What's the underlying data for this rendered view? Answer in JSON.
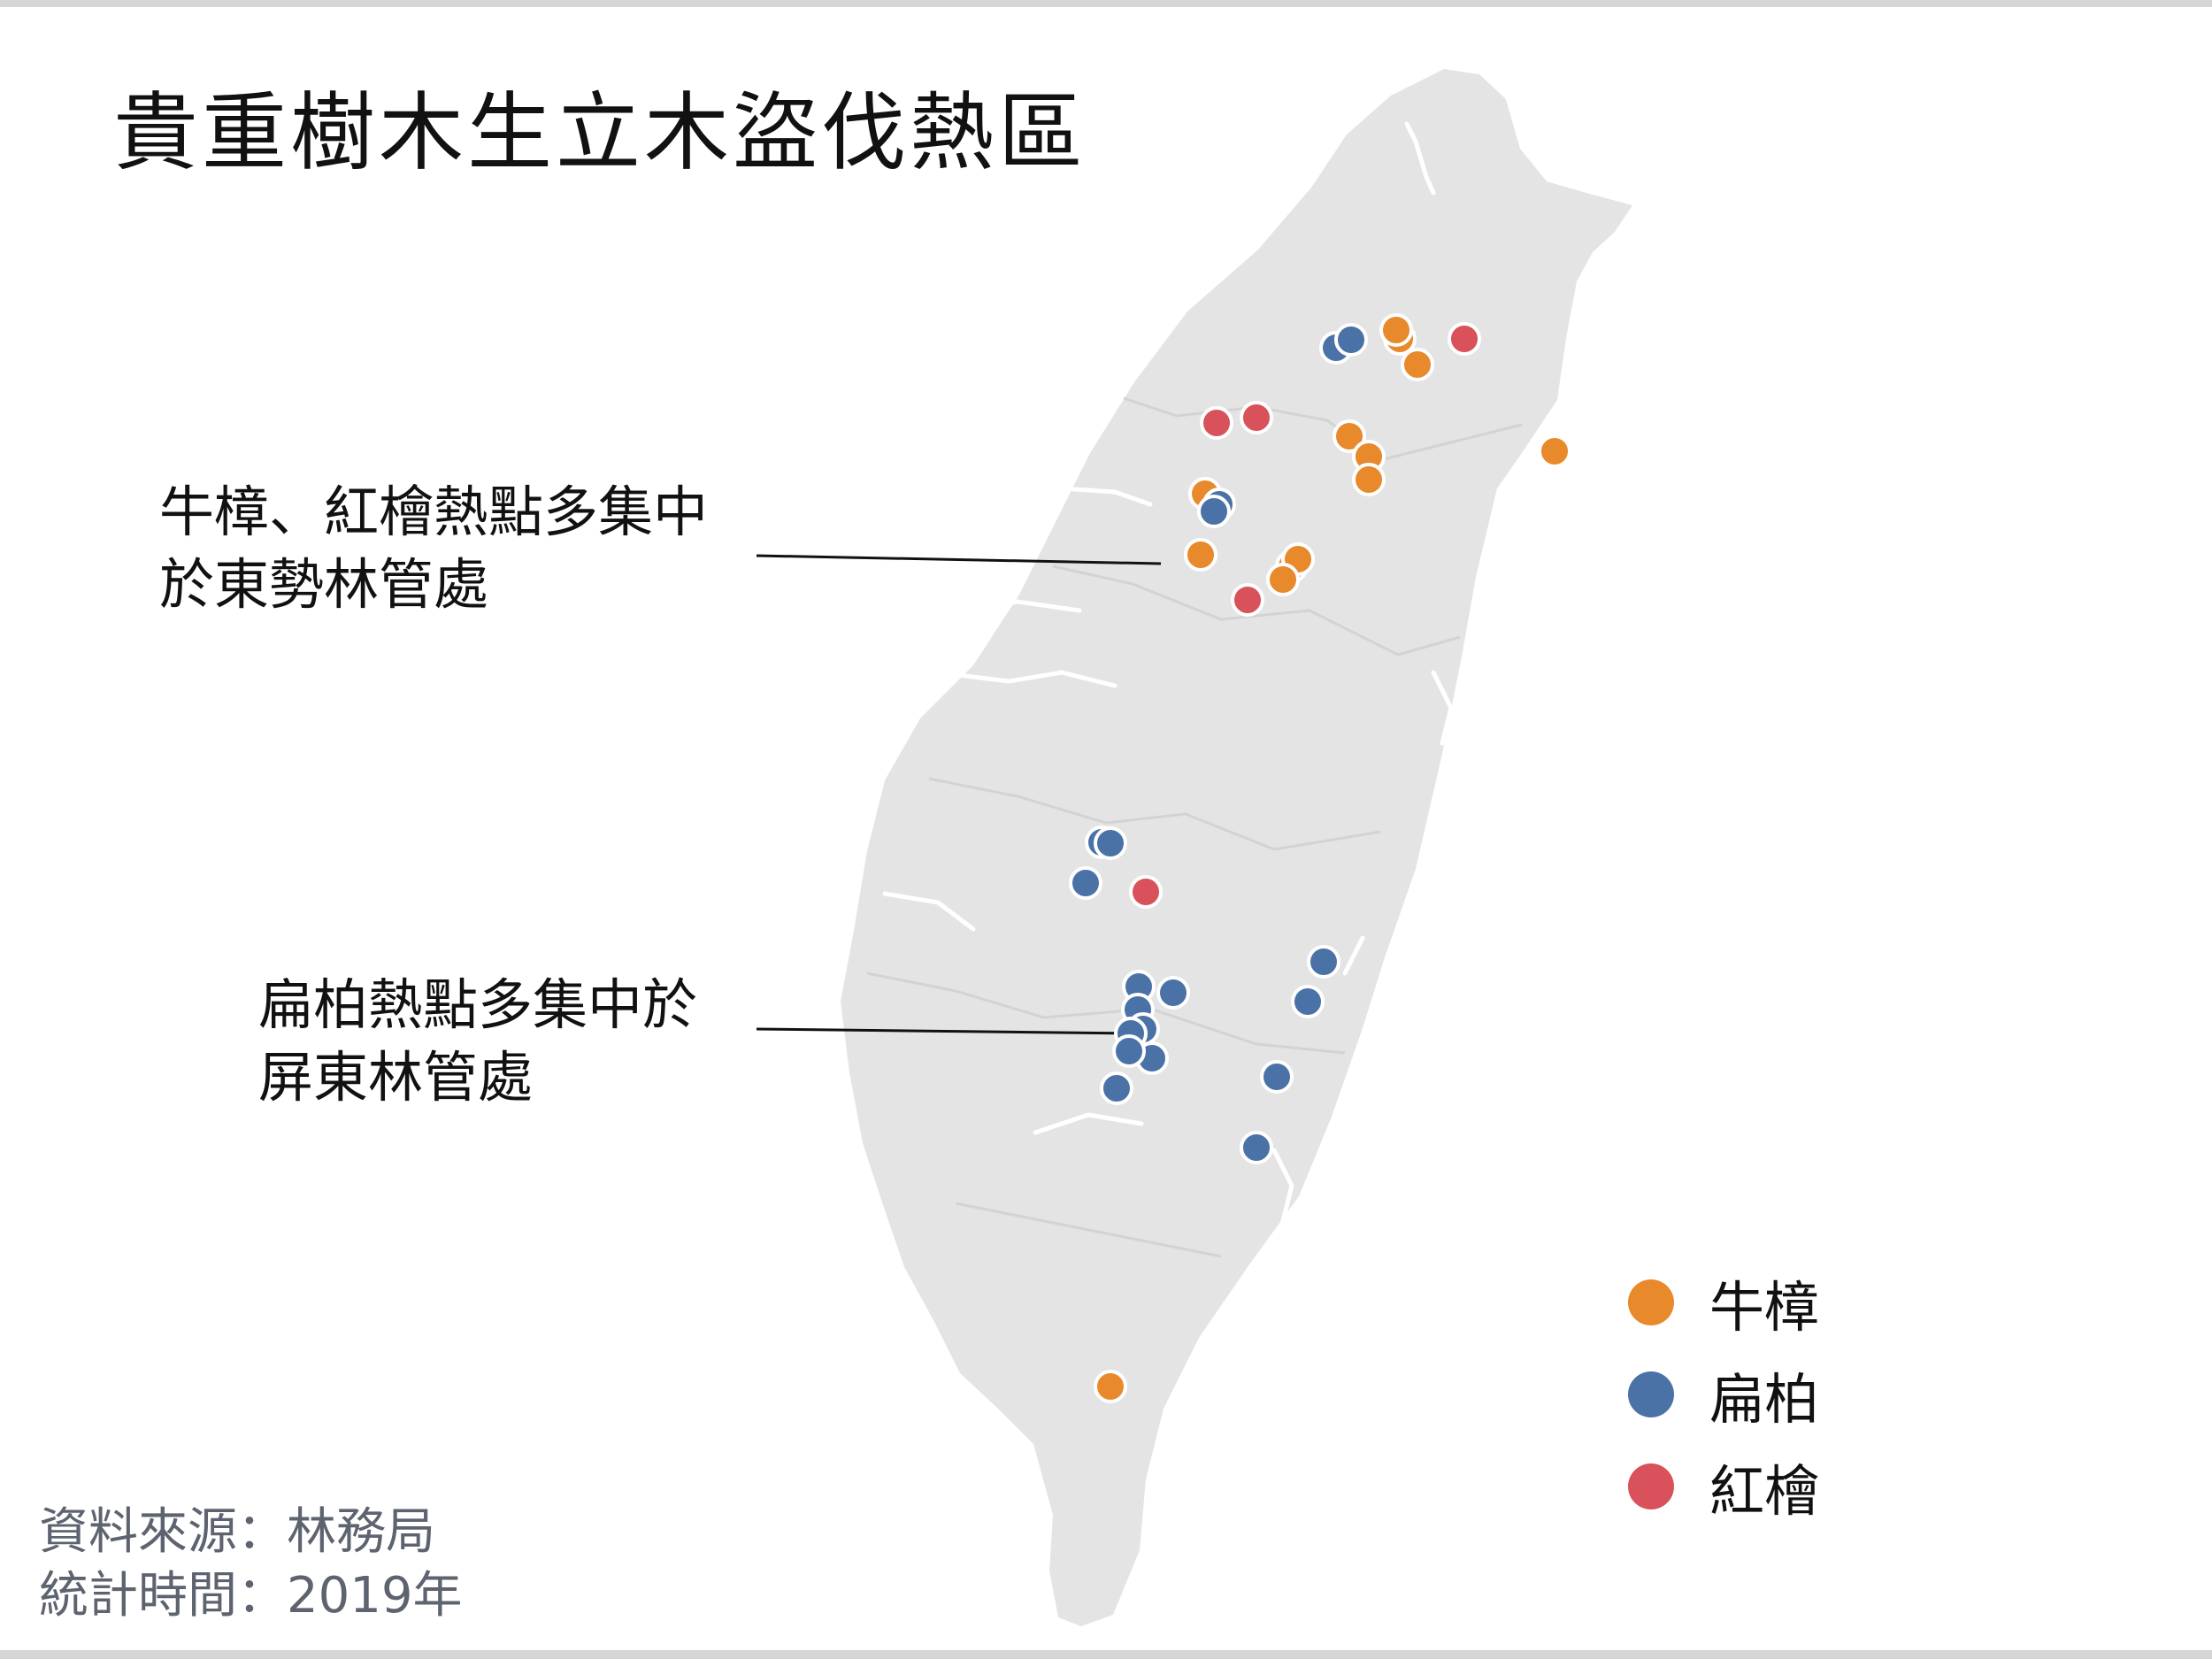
{
  "title": "貴重樹木生立木盜伐熱區",
  "annotations": {
    "north": {
      "line1": "牛樟、紅檜熱點多集中",
      "line2": "於東勢林管處"
    },
    "south": {
      "line1": "扁柏熱點多集中於",
      "line2": "屏東林管處"
    }
  },
  "legend": [
    {
      "label": "牛樟",
      "color": "#e8892b"
    },
    {
      "label": "扁柏",
      "color": "#4a72a6"
    },
    {
      "label": "紅檜",
      "color": "#d9515a"
    }
  ],
  "source": {
    "line1": "資料來源：林務局",
    "line2": "統計時間：2019年"
  },
  "colors": {
    "land": "#e4e4e4",
    "river": "#ffffff",
    "leader": "#111111"
  },
  "map_points": {
    "niuzhang": [
      [
        1582,
        383
      ],
      [
        1578,
        373
      ],
      [
        1602,
        412
      ],
      [
        1525,
        493
      ],
      [
        1547,
        516
      ],
      [
        1547,
        542
      ],
      [
        1362,
        558
      ],
      [
        1357,
        627
      ],
      [
        1460,
        640
      ],
      [
        1467,
        632
      ],
      [
        1450,
        655
      ],
      [
        1757,
        510
      ],
      [
        1255,
        1567
      ]
    ],
    "bianbo": [
      [
        1510,
        393
      ],
      [
        1527,
        384
      ],
      [
        1378,
        570
      ],
      [
        1372,
        578
      ],
      [
        1245,
        952
      ],
      [
        1255,
        953
      ],
      [
        1227,
        998
      ],
      [
        1287,
        1115
      ],
      [
        1326,
        1122
      ],
      [
        1286,
        1141
      ],
      [
        1292,
        1163
      ],
      [
        1278,
        1168
      ],
      [
        1302,
        1196
      ],
      [
        1276,
        1188
      ],
      [
        1262,
        1230
      ],
      [
        1496,
        1087
      ],
      [
        1478,
        1132
      ],
      [
        1443,
        1217
      ],
      [
        1420,
        1297
      ]
    ],
    "hongkuai": [
      [
        1655,
        383
      ],
      [
        1375,
        478
      ],
      [
        1420,
        472
      ],
      [
        1295,
        1008
      ],
      [
        1410,
        678
      ]
    ]
  }
}
